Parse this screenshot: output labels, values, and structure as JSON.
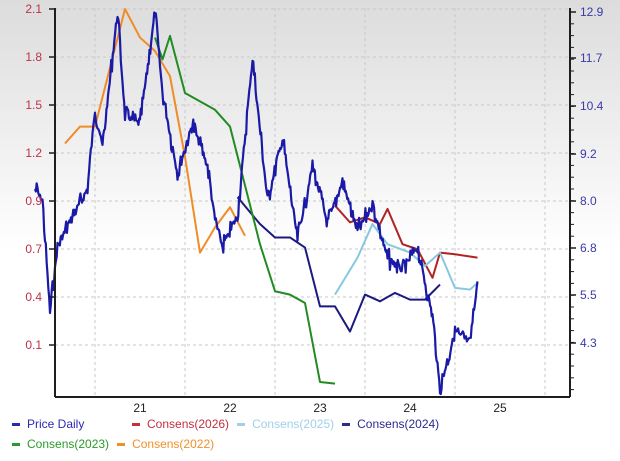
{
  "chart_data": {
    "type": "line",
    "title": "",
    "xlabel": "",
    "ylabel_left": "",
    "ylabel_right": "",
    "x_ticks": [
      "21",
      "22",
      "23",
      "24",
      "25"
    ],
    "left_axis": {
      "ticks": [
        "2.1",
        "1.8",
        "1.5",
        "1.2",
        "0.9",
        "0.7",
        "0.4",
        "0.1"
      ],
      "color": "#c0304a",
      "range": [
        -0.15,
        2.1
      ]
    },
    "right_axis": {
      "ticks": [
        "12.9",
        "11.7",
        "10.4",
        "9.2",
        "8.0",
        "6.8",
        "5.5",
        "4.3"
      ],
      "color": "#3a3aa8",
      "range": [
        3.0,
        12.9
      ]
    },
    "grid": true,
    "legend_position": "bottom",
    "series": [
      {
        "name": "Price Daily",
        "color": "#1a1aa6",
        "axis": "right",
        "approx_points": [
          [
            "2020-05",
            8.3
          ],
          [
            "2020-06",
            8.0
          ],
          [
            "2020-07",
            5.1
          ],
          [
            "2020-08",
            6.8
          ],
          [
            "2020-10",
            7.6
          ],
          [
            "2020-12",
            8.3
          ],
          [
            "2021-01",
            10.4
          ],
          [
            "2021-02",
            9.4
          ],
          [
            "2021-04",
            12.9
          ],
          [
            "2021-05",
            10.2
          ],
          [
            "2021-07",
            10.0
          ],
          [
            "2021-09",
            12.9
          ],
          [
            "2021-10",
            10.8
          ],
          [
            "2021-12",
            8.7
          ],
          [
            "2022-02",
            10.0
          ],
          [
            "2022-04",
            8.9
          ],
          [
            "2022-05",
            7.5
          ],
          [
            "2022-06",
            6.8
          ],
          [
            "2022-08",
            7.6
          ],
          [
            "2022-10",
            11.7
          ],
          [
            "2022-12",
            8.0
          ],
          [
            "2023-02",
            9.6
          ],
          [
            "2023-04",
            7.0
          ],
          [
            "2023-06",
            8.9
          ],
          [
            "2023-08",
            7.4
          ],
          [
            "2023-10",
            8.5
          ],
          [
            "2023-12",
            7.2
          ],
          [
            "2024-02",
            7.9
          ],
          [
            "2024-04",
            6.5
          ],
          [
            "2024-06",
            6.2
          ],
          [
            "2024-08",
            6.8
          ],
          [
            "2024-10",
            5.0
          ],
          [
            "2024-11",
            3.1
          ],
          [
            "2025-01",
            4.6
          ],
          [
            "2025-03",
            4.3
          ],
          [
            "2025-04",
            5.9
          ]
        ]
      },
      {
        "name": "Consens(2026)",
        "color": "#b22222",
        "axis": "left",
        "approx_points": [
          [
            "2023-09",
            0.93
          ],
          [
            "2023-11",
            0.83
          ],
          [
            "2024-01",
            0.86
          ],
          [
            "2024-03",
            0.82
          ],
          [
            "2024-04",
            0.91
          ],
          [
            "2024-06",
            0.7
          ],
          [
            "2024-08",
            0.67
          ],
          [
            "2024-10",
            0.5
          ],
          [
            "2024-11",
            0.65
          ],
          [
            "2025-01",
            0.64
          ],
          [
            "2025-04",
            0.62
          ]
        ]
      },
      {
        "name": "Consens(2025)",
        "color": "#87c8e0",
        "axis": "left",
        "approx_points": [
          [
            "2023-09",
            0.4
          ],
          [
            "2023-12",
            0.62
          ],
          [
            "2024-02",
            0.82
          ],
          [
            "2024-04",
            0.7
          ],
          [
            "2024-07",
            0.65
          ],
          [
            "2024-09",
            0.57
          ],
          [
            "2024-11",
            0.65
          ],
          [
            "2025-01",
            0.44
          ],
          [
            "2025-03",
            0.43
          ],
          [
            "2025-04",
            0.47
          ]
        ]
      },
      {
        "name": "Consens(2024)",
        "color": "#1a1a80",
        "axis": "left",
        "approx_points": [
          [
            "2022-08",
            0.98
          ],
          [
            "2022-11",
            0.82
          ],
          [
            "2023-01",
            0.74
          ],
          [
            "2023-03",
            0.74
          ],
          [
            "2023-05",
            0.68
          ],
          [
            "2023-07",
            0.33
          ],
          [
            "2023-09",
            0.33
          ],
          [
            "2023-11",
            0.18
          ],
          [
            "2024-01",
            0.4
          ],
          [
            "2024-03",
            0.36
          ],
          [
            "2024-05",
            0.41
          ],
          [
            "2024-07",
            0.37
          ],
          [
            "2024-09",
            0.37
          ],
          [
            "2024-11",
            0.46
          ]
        ]
      },
      {
        "name": "Consens(2023)",
        "color": "#228b22",
        "axis": "left",
        "approx_points": [
          [
            "2021-09",
            1.93
          ],
          [
            "2021-10",
            1.8
          ],
          [
            "2021-11",
            1.94
          ],
          [
            "2022-01",
            1.6
          ],
          [
            "2022-03",
            1.55
          ],
          [
            "2022-05",
            1.5
          ],
          [
            "2022-07",
            1.4
          ],
          [
            "2022-09",
            1.05
          ],
          [
            "2022-11",
            0.7
          ],
          [
            "2023-01",
            0.42
          ],
          [
            "2023-03",
            0.4
          ],
          [
            "2023-05",
            0.35
          ],
          [
            "2023-07",
            -0.12
          ],
          [
            "2023-09",
            -0.13
          ]
        ]
      },
      {
        "name": "Consens(2022)",
        "color": "#f08c28",
        "axis": "left",
        "approx_points": [
          [
            "2020-09",
            1.3
          ],
          [
            "2020-11",
            1.4
          ],
          [
            "2021-01",
            1.4
          ],
          [
            "2021-03",
            1.75
          ],
          [
            "2021-05",
            2.1
          ],
          [
            "2021-07",
            1.93
          ],
          [
            "2021-09",
            1.85
          ],
          [
            "2021-11",
            1.7
          ],
          [
            "2022-01",
            1.22
          ],
          [
            "2022-03",
            0.65
          ],
          [
            "2022-05",
            0.8
          ],
          [
            "2022-07",
            0.92
          ],
          [
            "2022-09",
            0.75
          ]
        ]
      }
    ]
  },
  "legend": {
    "rows": [
      [
        {
          "label": "Price Daily",
          "color": "#2a2ab0"
        },
        {
          "label": "Consens(2026)",
          "color": "#c03040"
        },
        {
          "label": "Consens(2025)",
          "color": "#9fd0e8"
        },
        {
          "label": "Consens(2024)",
          "color": "#2a2a90"
        }
      ],
      [
        {
          "label": "Consens(2023)",
          "color": "#2a9a2a"
        },
        {
          "label": "Consens(2022)",
          "color": "#f0902a"
        }
      ]
    ]
  }
}
